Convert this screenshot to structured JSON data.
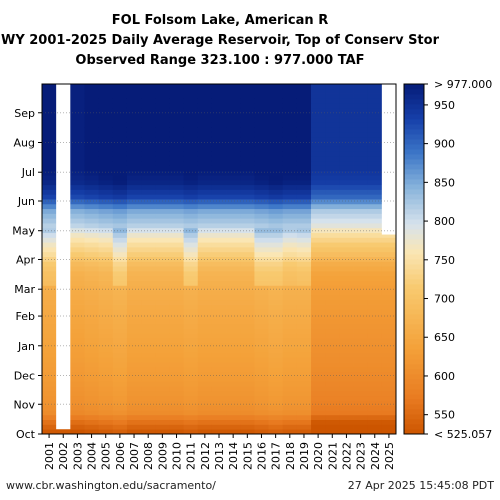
{
  "chart_data": {
    "type": "heatmap",
    "title_lines": [
      "FOL Folsom Lake, American R",
      "WY 2001-2025 Daily Average Reservoir, Top of Conserv Stor",
      "Observed Range 323.100 : 977.000 TAF"
    ],
    "x_categories": [
      "2001",
      "2002",
      "2003",
      "2004",
      "2005",
      "2006",
      "2007",
      "2008",
      "2009",
      "2010",
      "2011",
      "2012",
      "2013",
      "2014",
      "2015",
      "2016",
      "2017",
      "2018",
      "2019",
      "2020",
      "2021",
      "2022",
      "2023",
      "2024",
      "2025"
    ],
    "y_month_labels": [
      "Oct",
      "Nov",
      "Dec",
      "Jan",
      "Feb",
      "Mar",
      "Apr",
      "May",
      "Jun",
      "Jul",
      "Aug",
      "Sep"
    ],
    "y_range_days": [
      0,
      365
    ],
    "units": "TAF",
    "colorbar": {
      "ticks": [
        550,
        600,
        650,
        700,
        750,
        800,
        850,
        900,
        950
      ],
      "top_label": "> 977.000",
      "bottom_label": "< 525.057",
      "vmin": 525.057,
      "vmax": 977.0
    },
    "profile": {
      "description_days": [
        0,
        10,
        20,
        30,
        60,
        90,
        120,
        150,
        165,
        175,
        185,
        195,
        205,
        215,
        230,
        245,
        260,
        275,
        305,
        335,
        365
      ],
      "values": [
        530,
        560,
        600,
        612,
        628,
        640,
        650,
        662,
        672,
        690,
        720,
        745,
        775,
        815,
        850,
        930,
        965,
        977,
        977,
        977,
        977
      ]
    },
    "year_offsets": [
      0,
      0,
      -5,
      0,
      5,
      10,
      0,
      0,
      0,
      0,
      5,
      0,
      0,
      0,
      0,
      5,
      10,
      5,
      5,
      -30,
      -30,
      -30,
      -30,
      -30,
      -30
    ],
    "year_spring_top": [
      25,
      0,
      0,
      0,
      0,
      35,
      0,
      0,
      0,
      0,
      40,
      0,
      0,
      0,
      0,
      35,
      30,
      20,
      25,
      0,
      0,
      0,
      0,
      0,
      0
    ],
    "missing_blocks": [
      {
        "year": "2002",
        "start_day": 5,
        "end_day": 365
      },
      {
        "year": "2025",
        "start_day": 208,
        "end_day": 365
      }
    ],
    "grid": true,
    "colorbar_position": "right"
  },
  "footer": {
    "left": "www.cbr.washington.edu/sacramento/",
    "right": "27 Apr 2025 15:45:08 PDT"
  }
}
